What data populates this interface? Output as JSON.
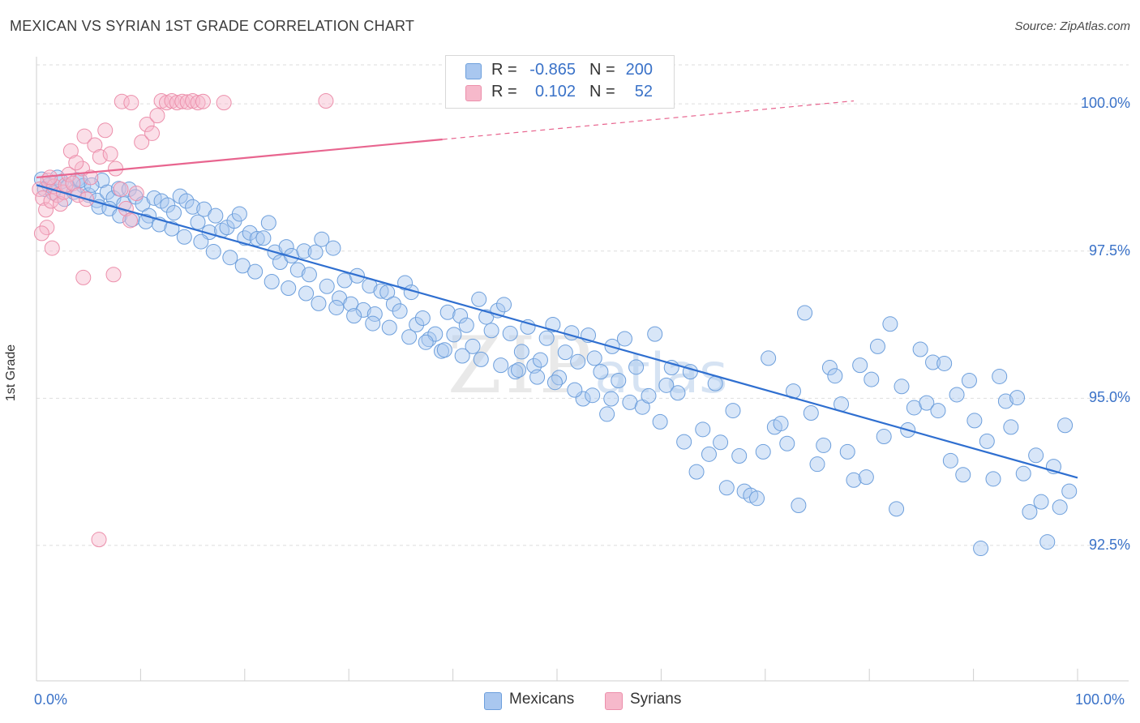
{
  "header": {
    "title": "MEXICAN VS SYRIAN 1ST GRADE CORRELATION CHART",
    "source": "Source: ZipAtlas.com"
  },
  "watermark": {
    "zip": "ZIP",
    "atlas": "atlas"
  },
  "legend": {
    "rows": [
      {
        "r_label": "R =",
        "r_value": "-0.865",
        "n_label": "N =",
        "n_value": "200"
      },
      {
        "r_label": "R =",
        "r_value": "0.102",
        "n_label": "N =",
        "n_value": "52"
      }
    ]
  },
  "bottom_legend": {
    "mexicans": "Mexicans",
    "syrians": "Syrians"
  },
  "colors": {
    "mexicans_fill": "#a9c7ef",
    "mexicans_stroke": "#6d9fdc",
    "mexicans_line": "#2f6fd0",
    "syrians_fill": "#f6b9cb",
    "syrians_stroke": "#ec8fab",
    "syrians_line": "#e8658f",
    "tick_label": "#3a72c8",
    "grid": "#dedede"
  },
  "chart_data": {
    "type": "scatter",
    "title": "MEXICAN VS SYRIAN 1ST GRADE CORRELATION CHART",
    "xlabel": "",
    "ylabel": "1st Grade",
    "xlim": [
      0,
      100
    ],
    "ylim": [
      90.2,
      100.8
    ],
    "x_tick_labels": [
      "0.0%",
      "100.0%"
    ],
    "y_ticks": [
      92.5,
      95.0,
      97.5,
      100.0
    ],
    "y_tick_labels": [
      "92.5%",
      "95.0%",
      "97.5%",
      "100.0%"
    ],
    "grid": true,
    "series": [
      {
        "name": "Mexicans",
        "n": 200,
        "r": -0.865,
        "trend": {
          "x": [
            0,
            100
          ],
          "y": [
            98.62,
            93.65
          ]
        },
        "points": [
          [
            0.5,
            98.72
          ],
          [
            1.2,
            98.62
          ],
          [
            2.0,
            98.75
          ],
          [
            2.4,
            98.68
          ],
          [
            3.0,
            98.6
          ],
          [
            3.9,
            98.71
          ],
          [
            4.5,
            98.61
          ],
          [
            5.0,
            98.45
          ],
          [
            5.8,
            98.36
          ],
          [
            6.3,
            98.7
          ],
          [
            6.8,
            98.5
          ],
          [
            7.4,
            98.4
          ],
          [
            7.9,
            98.56
          ],
          [
            8.4,
            98.3
          ],
          [
            8.9,
            98.55
          ],
          [
            9.5,
            98.42
          ],
          [
            10.2,
            98.3
          ],
          [
            10.8,
            98.1
          ],
          [
            11.3,
            98.4
          ],
          [
            12.0,
            98.35
          ],
          [
            12.6,
            98.28
          ],
          [
            13.2,
            98.15
          ],
          [
            13.8,
            98.43
          ],
          [
            14.4,
            98.35
          ],
          [
            15.0,
            98.25
          ],
          [
            15.5,
            97.99
          ],
          [
            16.1,
            98.21
          ],
          [
            16.6,
            97.82
          ],
          [
            17.2,
            98.1
          ],
          [
            17.8,
            97.85
          ],
          [
            18.3,
            97.9
          ],
          [
            19.0,
            98.01
          ],
          [
            19.5,
            98.13
          ],
          [
            20.0,
            97.72
          ],
          [
            20.5,
            97.81
          ],
          [
            21.2,
            97.71
          ],
          [
            21.8,
            97.72
          ],
          [
            22.3,
            97.98
          ],
          [
            22.9,
            97.48
          ],
          [
            23.4,
            97.31
          ],
          [
            24.0,
            97.57
          ],
          [
            24.5,
            97.42
          ],
          [
            25.1,
            97.18
          ],
          [
            25.7,
            97.5
          ],
          [
            26.2,
            97.1
          ],
          [
            26.8,
            97.48
          ],
          [
            27.4,
            97.7
          ],
          [
            27.9,
            96.9
          ],
          [
            28.5,
            97.55
          ],
          [
            29.1,
            96.7
          ],
          [
            29.6,
            97.0
          ],
          [
            30.2,
            96.6
          ],
          [
            30.8,
            97.08
          ],
          [
            31.4,
            96.5
          ],
          [
            32.0,
            96.91
          ],
          [
            32.5,
            96.43
          ],
          [
            33.1,
            96.82
          ],
          [
            33.7,
            96.8
          ],
          [
            34.3,
            96.6
          ],
          [
            34.9,
            96.48
          ],
          [
            35.4,
            96.96
          ],
          [
            36.0,
            96.8
          ],
          [
            36.5,
            96.25
          ],
          [
            37.1,
            96.36
          ],
          [
            37.7,
            96.0
          ],
          [
            38.3,
            96.09
          ],
          [
            38.9,
            95.8
          ],
          [
            39.5,
            96.46
          ],
          [
            40.1,
            96.08
          ],
          [
            40.7,
            96.4
          ],
          [
            41.3,
            96.24
          ],
          [
            41.9,
            95.88
          ],
          [
            42.5,
            96.68
          ],
          [
            43.2,
            96.38
          ],
          [
            43.7,
            96.15
          ],
          [
            44.3,
            96.49
          ],
          [
            44.9,
            96.59
          ],
          [
            45.5,
            96.1
          ],
          [
            46.0,
            95.45
          ],
          [
            46.6,
            95.79
          ],
          [
            47.2,
            96.21
          ],
          [
            47.8,
            95.55
          ],
          [
            48.4,
            95.65
          ],
          [
            49.0,
            96.02
          ],
          [
            49.6,
            96.25
          ],
          [
            50.2,
            95.35
          ],
          [
            50.8,
            95.78
          ],
          [
            51.4,
            96.11
          ],
          [
            52.0,
            95.62
          ],
          [
            52.5,
            94.99
          ],
          [
            53.0,
            96.07
          ],
          [
            53.6,
            95.68
          ],
          [
            54.2,
            95.45
          ],
          [
            54.8,
            94.73
          ],
          [
            55.3,
            95.88
          ],
          [
            55.9,
            95.3
          ],
          [
            56.5,
            96.01
          ],
          [
            57.0,
            94.93
          ],
          [
            57.6,
            95.53
          ],
          [
            58.2,
            94.85
          ],
          [
            58.8,
            95.04
          ],
          [
            59.4,
            96.09
          ],
          [
            59.9,
            94.6
          ],
          [
            60.5,
            95.22
          ],
          [
            61.0,
            95.52
          ],
          [
            61.6,
            95.09
          ],
          [
            62.2,
            94.26
          ],
          [
            62.8,
            95.45
          ],
          [
            63.4,
            93.75
          ],
          [
            64.0,
            94.47
          ],
          [
            64.6,
            94.05
          ],
          [
            65.2,
            95.25
          ],
          [
            65.7,
            94.25
          ],
          [
            66.3,
            93.48
          ],
          [
            66.9,
            94.79
          ],
          [
            67.5,
            94.02
          ],
          [
            68.0,
            93.42
          ],
          [
            68.6,
            93.35
          ],
          [
            69.2,
            93.3
          ],
          [
            69.8,
            94.09
          ],
          [
            70.3,
            95.68
          ],
          [
            70.9,
            94.51
          ],
          [
            71.5,
            94.57
          ],
          [
            72.1,
            94.23
          ],
          [
            72.7,
            95.12
          ],
          [
            73.2,
            93.18
          ],
          [
            73.8,
            96.45
          ],
          [
            74.4,
            94.75
          ],
          [
            75.0,
            93.88
          ],
          [
            75.6,
            94.2
          ],
          [
            76.2,
            95.52
          ],
          [
            76.7,
            95.38
          ],
          [
            77.3,
            94.9
          ],
          [
            77.9,
            94.09
          ],
          [
            78.5,
            93.61
          ],
          [
            79.1,
            95.56
          ],
          [
            79.7,
            93.66
          ],
          [
            80.2,
            95.32
          ],
          [
            80.8,
            95.88
          ],
          [
            81.4,
            94.35
          ],
          [
            82.0,
            96.26
          ],
          [
            82.6,
            93.12
          ],
          [
            83.1,
            95.2
          ],
          [
            83.7,
            94.46
          ],
          [
            84.3,
            94.84
          ],
          [
            84.9,
            95.83
          ],
          [
            85.5,
            94.92
          ],
          [
            86.1,
            95.61
          ],
          [
            86.6,
            94.79
          ],
          [
            87.2,
            95.59
          ],
          [
            87.8,
            93.94
          ],
          [
            88.4,
            95.06
          ],
          [
            89.0,
            93.7
          ],
          [
            89.6,
            95.3
          ],
          [
            90.1,
            94.62
          ],
          [
            90.7,
            92.45
          ],
          [
            91.3,
            94.27
          ],
          [
            91.9,
            93.63
          ],
          [
            92.5,
            95.37
          ],
          [
            93.1,
            94.95
          ],
          [
            93.6,
            94.51
          ],
          [
            94.2,
            95.01
          ],
          [
            94.8,
            93.72
          ],
          [
            95.4,
            93.07
          ],
          [
            96.0,
            94.03
          ],
          [
            96.5,
            93.24
          ],
          [
            97.1,
            92.56
          ],
          [
            97.7,
            93.84
          ],
          [
            98.3,
            93.15
          ],
          [
            98.8,
            94.54
          ],
          [
            99.2,
            93.42
          ],
          [
            0.8,
            98.55
          ],
          [
            1.6,
            98.49
          ],
          [
            2.7,
            98.38
          ],
          [
            3.6,
            98.5
          ],
          [
            4.2,
            98.7
          ],
          [
            5.3,
            98.62
          ],
          [
            6.0,
            98.25
          ],
          [
            7.0,
            98.22
          ],
          [
            8.0,
            98.1
          ],
          [
            9.2,
            98.04
          ],
          [
            10.5,
            98.0
          ],
          [
            11.8,
            97.95
          ],
          [
            13.0,
            97.88
          ],
          [
            14.2,
            97.74
          ],
          [
            15.8,
            97.66
          ],
          [
            17.0,
            97.49
          ],
          [
            18.6,
            97.39
          ],
          [
            19.8,
            97.25
          ],
          [
            21.0,
            97.15
          ],
          [
            22.6,
            96.98
          ],
          [
            24.2,
            96.87
          ],
          [
            25.9,
            96.78
          ],
          [
            27.1,
            96.61
          ],
          [
            28.8,
            96.54
          ],
          [
            30.5,
            96.4
          ],
          [
            32.3,
            96.27
          ],
          [
            33.9,
            96.2
          ],
          [
            35.8,
            96.04
          ],
          [
            37.4,
            95.95
          ],
          [
            39.2,
            95.82
          ],
          [
            40.9,
            95.72
          ],
          [
            42.7,
            95.66
          ],
          [
            44.6,
            95.56
          ],
          [
            46.3,
            95.48
          ],
          [
            48.1,
            95.36
          ],
          [
            49.8,
            95.27
          ],
          [
            51.7,
            95.14
          ],
          [
            53.4,
            95.05
          ],
          [
            55.2,
            94.99
          ]
        ]
      },
      {
        "name": "Syrians",
        "n": 52,
        "r": 0.102,
        "trend": {
          "x": [
            0,
            78.5
          ],
          "y": [
            98.75,
            100.05
          ]
        },
        "points": [
          [
            0.3,
            98.55
          ],
          [
            0.6,
            98.4
          ],
          [
            0.9,
            98.2
          ],
          [
            1.1,
            98.7
          ],
          [
            1.4,
            98.35
          ],
          [
            1.7,
            98.6
          ],
          [
            2.0,
            98.45
          ],
          [
            2.3,
            98.3
          ],
          [
            2.6,
            98.5
          ],
          [
            1.3,
            98.75
          ],
          [
            1.0,
            97.9
          ],
          [
            0.5,
            97.8
          ],
          [
            1.5,
            97.55
          ],
          [
            2.8,
            98.62
          ],
          [
            3.1,
            98.8
          ],
          [
            3.5,
            98.65
          ],
          [
            4.0,
            98.45
          ],
          [
            4.4,
            98.9
          ],
          [
            4.8,
            98.38
          ],
          [
            5.2,
            98.75
          ],
          [
            3.3,
            99.2
          ],
          [
            3.8,
            99.0
          ],
          [
            4.6,
            99.45
          ],
          [
            5.6,
            99.3
          ],
          [
            6.1,
            99.1
          ],
          [
            6.6,
            99.55
          ],
          [
            7.1,
            99.15
          ],
          [
            7.6,
            98.9
          ],
          [
            8.1,
            98.55
          ],
          [
            8.6,
            98.22
          ],
          [
            9.0,
            98.02
          ],
          [
            9.6,
            98.48
          ],
          [
            10.1,
            99.35
          ],
          [
            10.6,
            99.65
          ],
          [
            11.1,
            99.5
          ],
          [
            11.6,
            99.8
          ],
          [
            12.0,
            100.05
          ],
          [
            12.5,
            100.02
          ],
          [
            13.0,
            100.05
          ],
          [
            13.5,
            100.02
          ],
          [
            14.0,
            100.04
          ],
          [
            14.5,
            100.03
          ],
          [
            15.0,
            100.05
          ],
          [
            15.5,
            100.02
          ],
          [
            16.0,
            100.04
          ],
          [
            18.0,
            100.02
          ],
          [
            27.8,
            100.05
          ],
          [
            8.2,
            100.04
          ],
          [
            9.1,
            100.02
          ],
          [
            7.4,
            97.1
          ],
          [
            4.5,
            97.05
          ],
          [
            6.0,
            92.6
          ]
        ]
      }
    ]
  }
}
